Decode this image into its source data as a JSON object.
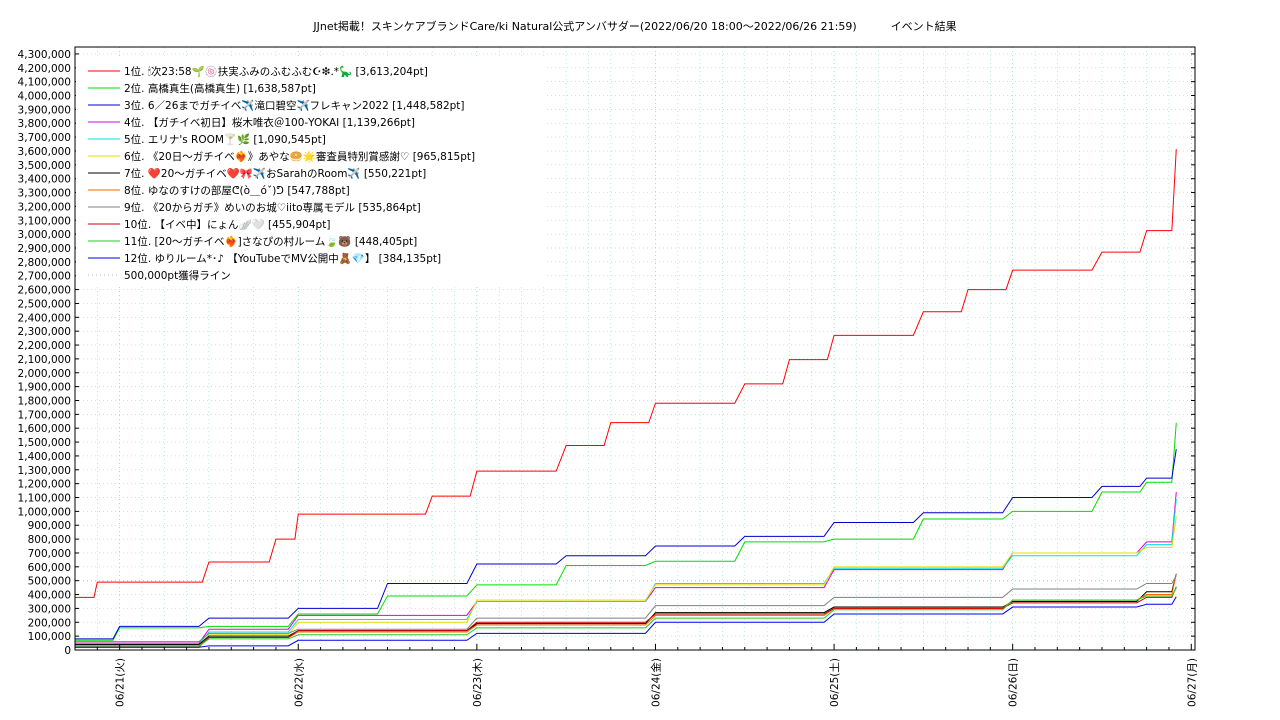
{
  "chart_data": {
    "type": "line",
    "title": "JJnet掲載！スキンケアブランドCare/ki Natural公式アンバサダー(2022/06/20 18:00～2022/06/26 21:59)",
    "subtitle": "イベント結果",
    "xlabel": "",
    "ylabel": "",
    "ylim": [
      0,
      4350000
    ],
    "yticks": [
      0,
      100000,
      200000,
      300000,
      400000,
      500000,
      600000,
      700000,
      800000,
      900000,
      1000000,
      1100000,
      1200000,
      1300000,
      1400000,
      1500000,
      1600000,
      1700000,
      1800000,
      1900000,
      2000000,
      2100000,
      2200000,
      2300000,
      2400000,
      2500000,
      2600000,
      2700000,
      2800000,
      2900000,
      3000000,
      3100000,
      3200000,
      3300000,
      3400000,
      3500000,
      3600000,
      3700000,
      3800000,
      3900000,
      4000000,
      4100000,
      4200000,
      4300000
    ],
    "ytick_labels": [
      "0",
      "100,000",
      "200,000",
      "300,000",
      "400,000",
      "500,000",
      "600,000",
      "700,000",
      "800,000",
      "900,000",
      "1,000,000",
      "1,100,000",
      "1,200,000",
      "1,300,000",
      "1,400,000",
      "1,500,000",
      "1,600,000",
      "1,700,000",
      "1,800,000",
      "1,900,000",
      "2,000,000",
      "2,100,000",
      "2,200,000",
      "2,300,000",
      "2,400,000",
      "2,500,000",
      "2,600,000",
      "2,700,000",
      "2,800,000",
      "2,900,000",
      "3,000,000",
      "3,100,000",
      "3,200,000",
      "3,300,000",
      "3,400,000",
      "3,500,000",
      "3,600,000",
      "3,700,000",
      "3,800,000",
      "3,900,000",
      "4,000,000",
      "4,100,000",
      "4,200,000",
      "4,300,000"
    ],
    "xlim": [
      "2022-06-20 18:00",
      "2022-06-27 00:30"
    ],
    "xticks": [
      "2022-06-21 00:00",
      "2022-06-22 00:00",
      "2022-06-23 00:00",
      "2022-06-24 00:00",
      "2022-06-25 00:00",
      "2022-06-26 00:00",
      "2022-06-27 00:00"
    ],
    "xtick_labels": [
      "06/21(火)",
      "06/22(水)",
      "06/23(木)",
      "06/24(金)",
      "06/25(土)",
      "06/26(日)",
      "06/27(月)"
    ],
    "grid": true,
    "legend_position": "top-left",
    "series": [
      {
        "name": "1位. 🕯次23:58🌱🍥扶実ふみのふむふむ☪❇︎.*🦕 [3,613,204pt]",
        "color": "#ff0000",
        "x": [
          "2022-06-20 18:00",
          "2022-06-20 21:00",
          "2022-06-21 00:00",
          "2022-06-21 06:00",
          "2022-06-21 12:00",
          "2022-06-21 15:00",
          "2022-06-21 21:00",
          "2022-06-22 00:00",
          "2022-06-22 12:00",
          "2022-06-22 18:00",
          "2022-06-23 00:00",
          "2022-06-23 12:00",
          "2022-06-23 18:00",
          "2022-06-24 00:00",
          "2022-06-24 12:00",
          "2022-06-24 18:00",
          "2022-06-25 00:00",
          "2022-06-25 12:00",
          "2022-06-25 18:00",
          "2022-06-26 00:00",
          "2022-06-26 12:00",
          "2022-06-26 18:00",
          "2022-06-26 21:59"
        ],
        "y": [
          380000,
          490000,
          490000,
          490000,
          635000,
          635000,
          800000,
          980000,
          980000,
          1110000,
          1290000,
          1475000,
          1640000,
          1780000,
          1920000,
          2095000,
          2270000,
          2440000,
          2600000,
          2740000,
          2870000,
          3025000,
          3613204
        ]
      },
      {
        "name": "2位. 高橋真生(高橋真生) [1,638,587pt]",
        "color": "#00dd00",
        "x": [
          "2022-06-20 18:00",
          "2022-06-21 00:00",
          "2022-06-21 12:00",
          "2022-06-22 00:00",
          "2022-06-22 12:00",
          "2022-06-23 00:00",
          "2022-06-23 12:00",
          "2022-06-24 00:00",
          "2022-06-24 12:00",
          "2022-06-25 00:00",
          "2022-06-25 12:00",
          "2022-06-26 00:00",
          "2022-06-26 12:00",
          "2022-06-26 18:00",
          "2022-06-26 21:59"
        ],
        "y": [
          70000,
          160000,
          170000,
          260000,
          390000,
          470000,
          610000,
          640000,
          780000,
          800000,
          945000,
          1000000,
          1140000,
          1210000,
          1638587
        ]
      },
      {
        "name": "3位. 6／26までガチイベ✈️滝口碧空✈️フレキャン2022 [1,448,582pt]",
        "color": "#0000cc",
        "x": [
          "2022-06-20 18:00",
          "2022-06-21 00:00",
          "2022-06-21 12:00",
          "2022-06-22 00:00",
          "2022-06-22 12:00",
          "2022-06-23 00:00",
          "2022-06-23 12:00",
          "2022-06-24 00:00",
          "2022-06-24 12:00",
          "2022-06-25 00:00",
          "2022-06-25 12:00",
          "2022-06-26 00:00",
          "2022-06-26 12:00",
          "2022-06-26 18:00",
          "2022-06-26 21:59"
        ],
        "y": [
          80000,
          170000,
          230000,
          300000,
          480000,
          620000,
          680000,
          750000,
          820000,
          920000,
          990000,
          1100000,
          1180000,
          1240000,
          1448582
        ]
      },
      {
        "name": "4位. 【ガチイベ初日】桜木唯衣＠100-YOKAI [1,139,266pt]",
        "color": "#dd00dd",
        "x": [
          "2022-06-20 18:00",
          "2022-06-21 12:00",
          "2022-06-22 00:00",
          "2022-06-23 00:00",
          "2022-06-24 00:00",
          "2022-06-25 00:00",
          "2022-06-26 00:00",
          "2022-06-26 18:00",
          "2022-06-26 21:59"
        ],
        "y": [
          50000,
          150000,
          250000,
          350000,
          450000,
          580000,
          700000,
          780000,
          1139266
        ]
      },
      {
        "name": "5位. エリナ's ROOM🍸🌿 [1,090,545pt]",
        "color": "#00e0e0",
        "x": [
          "2022-06-20 18:00",
          "2022-06-21 12:00",
          "2022-06-22 00:00",
          "2022-06-23 00:00",
          "2022-06-24 00:00",
          "2022-06-25 00:00",
          "2022-06-26 00:00",
          "2022-06-26 18:00",
          "2022-06-26 21:59"
        ],
        "y": [
          40000,
          130000,
          220000,
          350000,
          480000,
          590000,
          680000,
          760000,
          1090545
        ]
      },
      {
        "name": "6位. 《20日〜ガチイベ❤️‍🔥》あやな🥯🌟審査員特別賞感謝♡ [965,815pt]",
        "color": "#e0e000",
        "x": [
          "2022-06-20 18:00",
          "2022-06-21 12:00",
          "2022-06-22 00:00",
          "2022-06-23 00:00",
          "2022-06-24 00:00",
          "2022-06-25 00:00",
          "2022-06-26 00:00",
          "2022-06-26 18:00",
          "2022-06-26 21:59"
        ],
        "y": [
          30000,
          110000,
          200000,
          360000,
          470000,
          600000,
          700000,
          740000,
          965815
        ]
      },
      {
        "name": "7位. ❤️20〜ガチイベ❤️🎀✈️おSarahのRoom✈️ [550,221pt]",
        "color": "#000000",
        "x": [
          "2022-06-20 18:00",
          "2022-06-21 12:00",
          "2022-06-22 00:00",
          "2022-06-23 00:00",
          "2022-06-24 00:00",
          "2022-06-25 00:00",
          "2022-06-26 00:00",
          "2022-06-26 18:00",
          "2022-06-26 21:59"
        ],
        "y": [
          40000,
          100000,
          140000,
          190000,
          270000,
          310000,
          350000,
          420000,
          550221
        ]
      },
      {
        "name": "8位. ゆなのすけの部屋ᕦ(ò＿óˇ)ᕤ [547,788pt]",
        "color": "#ff6600",
        "x": [
          "2022-06-20 18:00",
          "2022-06-21 12:00",
          "2022-06-22 00:00",
          "2022-06-23 00:00",
          "2022-06-24 00:00",
          "2022-06-25 00:00",
          "2022-06-26 00:00",
          "2022-06-26 18:00",
          "2022-06-26 21:59"
        ],
        "y": [
          20000,
          90000,
          130000,
          180000,
          250000,
          300000,
          360000,
          400000,
          547788
        ]
      },
      {
        "name": "9位. 《20からガチ》めいのお城♡iito専属モデル [535,864pt]",
        "color": "#808080",
        "x": [
          "2022-06-20 18:00",
          "2022-06-21 12:00",
          "2022-06-22 00:00",
          "2022-06-23 00:00",
          "2022-06-24 00:00",
          "2022-06-25 00:00",
          "2022-06-26 00:00",
          "2022-06-26 18:00",
          "2022-06-26 21:59"
        ],
        "y": [
          60000,
          120000,
          150000,
          230000,
          320000,
          380000,
          440000,
          480000,
          535864
        ]
      },
      {
        "name": "10位. 【イベ中】にょん🪽🤍 [455,904pt]",
        "color": "#cc0000",
        "x": [
          "2022-06-20 18:00",
          "2022-06-21 12:00",
          "2022-06-22 00:00",
          "2022-06-23 00:00",
          "2022-06-24 00:00",
          "2022-06-25 00:00",
          "2022-06-26 00:00",
          "2022-06-26 18:00",
          "2022-06-26 21:59"
        ],
        "y": [
          30000,
          90000,
          140000,
          200000,
          260000,
          300000,
          340000,
          380000,
          455904
        ]
      },
      {
        "name": "11位. [20〜ガチイベ❤️‍🔥]さなぴの村ルーム🍃🐻 [448,405pt]",
        "color": "#22cc22",
        "x": [
          "2022-06-20 18:00",
          "2022-06-21 12:00",
          "2022-06-22 00:00",
          "2022-06-23 00:00",
          "2022-06-24 00:00",
          "2022-06-25 00:00",
          "2022-06-26 00:00",
          "2022-06-26 18:00",
          "2022-06-26 21:59"
        ],
        "y": [
          30000,
          80000,
          110000,
          160000,
          230000,
          290000,
          360000,
          390000,
          448405
        ]
      },
      {
        "name": "12位. ゆりルーム*･♪ 【YouTubeでMV公開中🧸💎】 [384,135pt]",
        "color": "#0000ee",
        "x": [
          "2022-06-20 18:00",
          "2022-06-21 12:00",
          "2022-06-22 00:00",
          "2022-06-23 00:00",
          "2022-06-24 00:00",
          "2022-06-25 00:00",
          "2022-06-26 00:00",
          "2022-06-26 18:00",
          "2022-06-26 21:59"
        ],
        "y": [
          20000,
          30000,
          70000,
          120000,
          200000,
          260000,
          310000,
          330000,
          384135
        ]
      },
      {
        "name": "500,000pt獲得ライン",
        "color": "#c0c0c0",
        "dashed": true,
        "x": [
          "2022-06-20 18:00",
          "2022-06-26 21:59"
        ],
        "y": [
          500000,
          500000
        ]
      }
    ]
  }
}
